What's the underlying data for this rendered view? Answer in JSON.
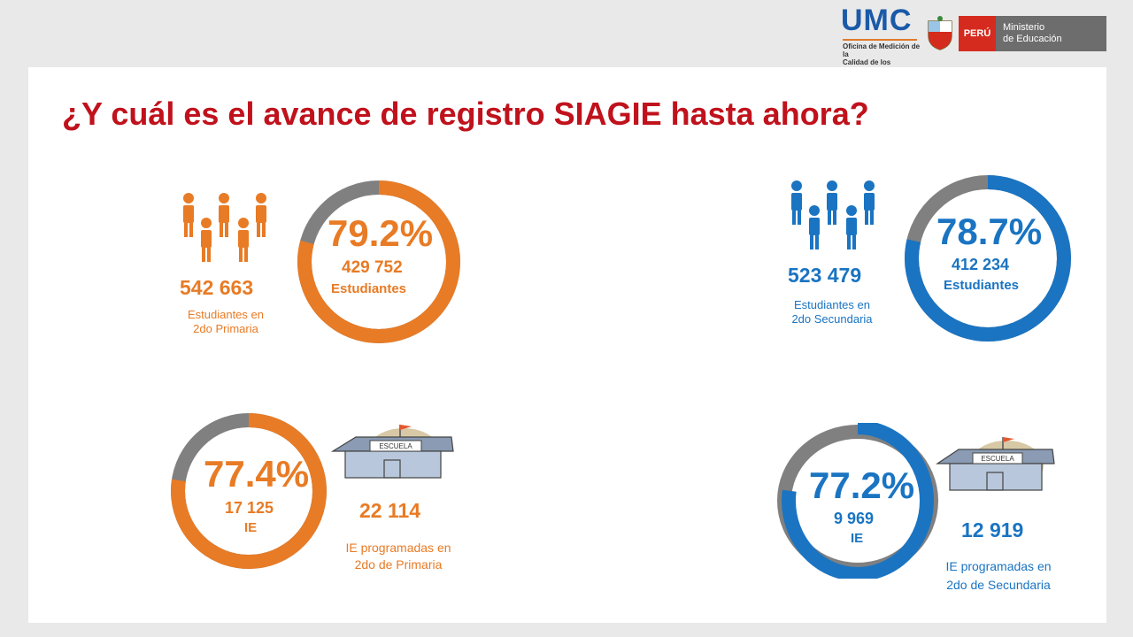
{
  "header": {
    "umc_title": "UMC",
    "umc_subtitle_1": "Oficina de Medición de la",
    "umc_subtitle_2": "Calidad de los Aprendizajes",
    "peru_label": "PERÚ",
    "ministry_line1": "Ministerio",
    "ministry_line2": "de Educación"
  },
  "title": "¿Y cuál es el avance  de registro SIAGIE hasta ahora?",
  "colors": {
    "primaria": "#e87b25",
    "secundaria": "#1a74c2",
    "pending": "#808080",
    "title": "#c0121c"
  },
  "panels": {
    "primaria_estudiantes": {
      "percent": "79.2%",
      "percent_value": 79.2,
      "registered": "429 752",
      "registered_label": "Estudiantes",
      "total": "542 663",
      "total_label_1": "Estudiantes en",
      "total_label_2": "2do Primaria",
      "icon": "students-group-icon"
    },
    "secundaria_estudiantes": {
      "percent": "78.7%",
      "percent_value": 78.7,
      "registered": "412 234",
      "registered_label": "Estudiantes",
      "total": "523 479",
      "total_label_1": "Estudiantes en",
      "total_label_2": "2do Secundaria",
      "icon": "students-group-icon"
    },
    "primaria_ie": {
      "percent": "77.4%",
      "percent_value": 77.4,
      "registered": "17 125",
      "registered_label": "IE",
      "total": "22 114",
      "total_label_1": "IE programadas en",
      "total_label_2": "2do de Primaria",
      "school_sign": "ESCUELA",
      "icon": "school-building-icon"
    },
    "secundaria_ie": {
      "percent": "77.2%",
      "percent_value": 77.2,
      "registered": "9 969",
      "registered_label": "IE",
      "total": "12 919",
      "total_label_1": "IE programadas en",
      "total_label_2": "2do de Secundaria",
      "school_sign": "ESCUELA",
      "icon": "school-building-icon"
    }
  }
}
